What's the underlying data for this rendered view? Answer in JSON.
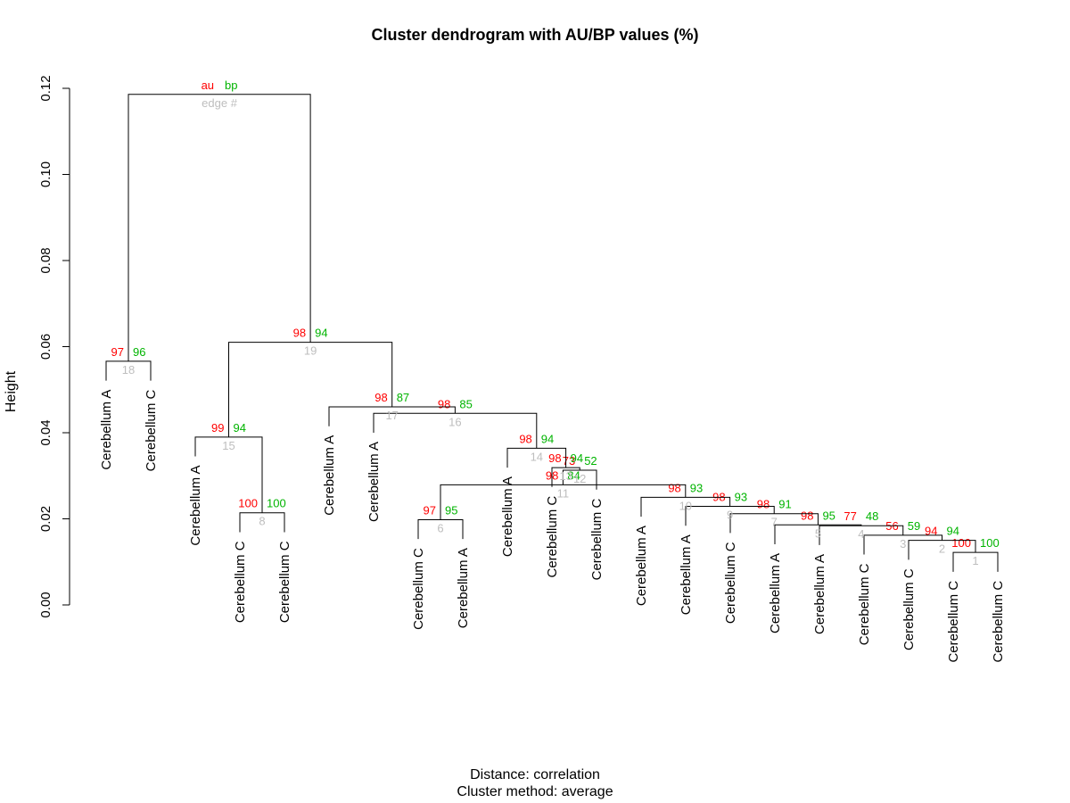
{
  "chart_data": {
    "type": "dendrogram",
    "title": "Cluster dendrogram with AU/BP values (%)",
    "xlabel_lines": [
      "Distance:  correlation",
      "Cluster method: average"
    ],
    "ylabel": "Height",
    "ylim": [
      0,
      0.12
    ],
    "yticks": [
      "0.00",
      "0.02",
      "0.04",
      "0.06",
      "0.08",
      "0.10",
      "0.12"
    ],
    "legend": {
      "au": "au",
      "bp": "bp",
      "edge": "edge #"
    },
    "colors": {
      "au": "#ff0000",
      "bp": "#00b400",
      "edge": "#bebebe"
    },
    "leaves": [
      "Cerebellum A",
      "Cerebellum C",
      "Cerebellum A",
      "Cerebellum C",
      "Cerebellum C",
      "Cerebellum A",
      "Cerebellum A",
      "Cerebellum C",
      "Cerebellum A",
      "Cerebellum A",
      "Cerebellum C",
      "Cerebellum C",
      "Cerebellum A",
      "Cerebellum A",
      "Cerebellum C",
      "Cerebellum A",
      "Cerebellum A",
      "Cerebellum C",
      "Cerebellum C",
      "Cerebellum C",
      "Cerebellum C"
    ],
    "merges": [
      {
        "edge": "1",
        "left": 19,
        "right": 20,
        "height": 0.0122,
        "au": "100",
        "bp": "100"
      },
      {
        "edge": "2",
        "left": 18,
        "right": "E1",
        "height": 0.015,
        "au": "94",
        "bp": "94"
      },
      {
        "edge": "3",
        "left": 17,
        "right": "E2",
        "height": 0.0162,
        "au": "56",
        "bp": "59"
      },
      {
        "edge": "4",
        "left": "E3",
        "right": 16,
        "height": 0.0184,
        "au": "77",
        "bp": "48"
      },
      {
        "edge": "5",
        "left": 15,
        "right": "E4",
        "height": 0.0186,
        "au": "98",
        "bp": "95"
      },
      {
        "edge": "6",
        "left": 7,
        "right": 8,
        "height": 0.0198,
        "au": "97",
        "bp": "95"
      },
      {
        "edge": "7",
        "left": 14,
        "right": "E5",
        "height": 0.0212,
        "au": "98",
        "bp": "91"
      },
      {
        "edge": "9",
        "left": 13,
        "right": "E7",
        "height": 0.0229,
        "au": "98",
        "bp": "93"
      },
      {
        "edge": "10",
        "left": 12,
        "right": "E9",
        "height": 0.025,
        "au": "98",
        "bp": "93"
      },
      {
        "edge": "11",
        "left": "E6",
        "right": "E10",
        "height": 0.0279,
        "au": "98",
        "bp": "84"
      },
      {
        "edge": "12",
        "left": 11,
        "right": "E11",
        "height": 0.0313,
        "au": "73",
        "bp": "52"
      },
      {
        "edge": "13",
        "left": 10,
        "right": "E12",
        "height": 0.0319,
        "au": "98",
        "bp": "94"
      },
      {
        "edge": "14",
        "left": 9,
        "right": "E13",
        "height": 0.0364,
        "au": "98",
        "bp": "94"
      },
      {
        "edge": "16",
        "left": 6,
        "right": "E14",
        "height": 0.0445,
        "au": "98",
        "bp": "85"
      },
      {
        "edge": "17",
        "left": 5,
        "right": "E16",
        "height": 0.046,
        "au": "98",
        "bp": "87"
      },
      {
        "edge": "8",
        "left": 3,
        "right": 4,
        "height": 0.0214,
        "au": "100",
        "bp": "100"
      },
      {
        "edge": "15",
        "left": 2,
        "right": "E8",
        "height": 0.039,
        "au": "99",
        "bp": "94"
      },
      {
        "edge": "19",
        "left": "E15",
        "right": "E17",
        "height": 0.061,
        "au": "98",
        "bp": "94"
      },
      {
        "edge": "18",
        "left": 0,
        "right": 1,
        "height": 0.0566,
        "au": "97",
        "bp": "96"
      },
      {
        "edge": "root",
        "left": "E18",
        "right": "E19",
        "height": 0.1186,
        "au": "",
        "bp": ""
      }
    ]
  }
}
